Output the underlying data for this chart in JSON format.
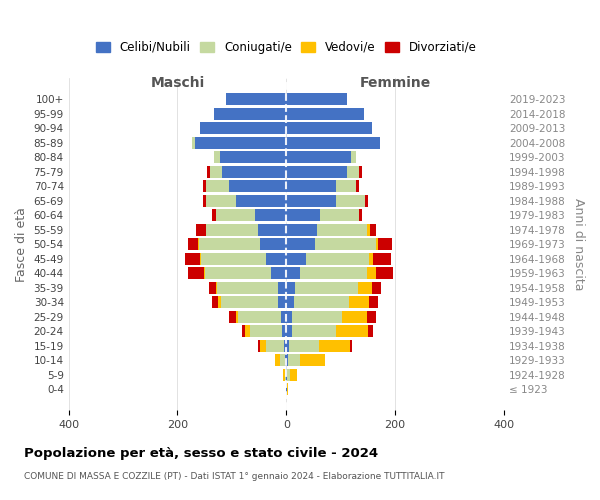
{
  "age_groups": [
    "0-4",
    "5-9",
    "10-14",
    "15-19",
    "20-24",
    "25-29",
    "30-34",
    "35-39",
    "40-44",
    "45-49",
    "50-54",
    "55-59",
    "60-64",
    "65-69",
    "70-74",
    "75-79",
    "80-84",
    "85-89",
    "90-94",
    "95-99",
    "100+"
  ],
  "birth_years": [
    "2019-2023",
    "2014-2018",
    "2009-2013",
    "2004-2008",
    "1999-2003",
    "1994-1998",
    "1989-1993",
    "1984-1988",
    "1979-1983",
    "1974-1978",
    "1969-1973",
    "1964-1968",
    "1959-1963",
    "1954-1958",
    "1949-1953",
    "1944-1948",
    "1939-1943",
    "1934-1938",
    "1929-1933",
    "1924-1928",
    "≤ 1923"
  ],
  "colors": {
    "celibi": "#4472c4",
    "coniugati": "#c5d9a0",
    "vedovi": "#ffc000",
    "divorziati": "#cc0000"
  },
  "maschi": {
    "celibi": [
      110,
      132,
      158,
      168,
      122,
      118,
      105,
      92,
      58,
      52,
      48,
      38,
      28,
      15,
      15,
      10,
      8,
      5,
      3,
      1,
      1
    ],
    "coniugati": [
      0,
      0,
      0,
      5,
      10,
      22,
      42,
      56,
      72,
      96,
      112,
      118,
      122,
      112,
      105,
      78,
      58,
      32,
      8,
      2,
      0
    ],
    "vedovi": [
      0,
      0,
      0,
      0,
      0,
      0,
      0,
      0,
      0,
      0,
      2,
      2,
      2,
      3,
      5,
      5,
      10,
      12,
      10,
      3,
      0
    ],
    "divorziati": [
      0,
      0,
      0,
      0,
      0,
      5,
      6,
      6,
      6,
      18,
      18,
      28,
      28,
      12,
      12,
      12,
      5,
      3,
      0,
      0,
      0
    ]
  },
  "femmine": {
    "celibi": [
      112,
      142,
      158,
      172,
      118,
      112,
      92,
      92,
      62,
      56,
      52,
      36,
      26,
      16,
      14,
      10,
      10,
      5,
      4,
      2,
      1
    ],
    "coniugati": [
      0,
      0,
      0,
      0,
      10,
      22,
      36,
      52,
      72,
      92,
      112,
      116,
      122,
      116,
      102,
      92,
      82,
      56,
      22,
      4,
      0
    ],
    "vedovi": [
      0,
      0,
      0,
      0,
      0,
      0,
      0,
      0,
      0,
      5,
      5,
      8,
      16,
      26,
      36,
      46,
      58,
      56,
      46,
      14,
      2
    ],
    "divorziati": [
      0,
      0,
      0,
      0,
      0,
      5,
      6,
      6,
      6,
      12,
      26,
      32,
      32,
      16,
      16,
      16,
      10,
      4,
      0,
      0,
      0
    ]
  },
  "title": "Popolazione per età, sesso e stato civile - 2024",
  "subtitle": "COMUNE DI MASSA E COZZILE (PT) - Dati ISTAT 1° gennaio 2024 - Elaborazione TUTTITALIA.IT",
  "ylabel": "Fasce di età",
  "ylabel_right": "Anni di nascita",
  "xlabel_left": "Maschi",
  "xlabel_right": "Femmine",
  "legend_labels": [
    "Celibi/Nubili",
    "Coniugati/e",
    "Vedovi/e",
    "Divorziati/e"
  ],
  "xlim": 400,
  "background_color": "#ffffff",
  "grid_color": "#cccccc"
}
